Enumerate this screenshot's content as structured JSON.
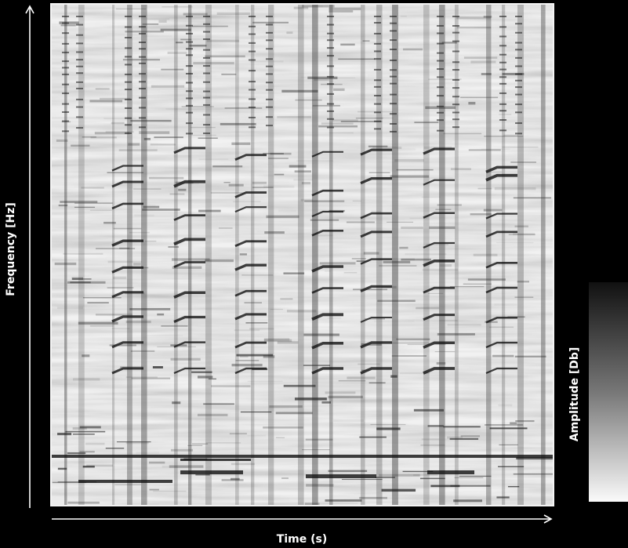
{
  "chart_data": {
    "type": "spectrogram",
    "xlabel": "Time (s)",
    "ylabel": "Frequency [Hz]",
    "colorbar_label": "Amplitude [Db]"
  }
}
